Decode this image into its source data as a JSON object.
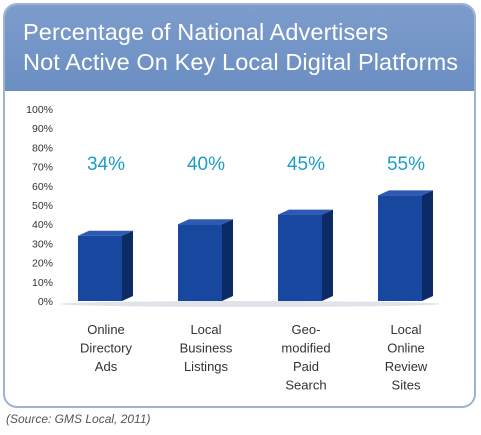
{
  "title_lines": [
    "Percentage of National Advertisers",
    "Not Active On Key Local Digital Platforms"
  ],
  "source": "(Source: GMS Local, 2011)",
  "colors": {
    "header": "#6b8ec2",
    "bar_front": "#17479e",
    "bar_side": "#0b2a66",
    "bar_top": "#2f5ab4",
    "value_label": "#1b9dc8"
  },
  "chart_data": {
    "type": "bar",
    "title": "Percentage of National Advertisers Not Active On Key Local Digital Platforms",
    "categories": [
      [
        "Online",
        "Directory",
        "Ads"
      ],
      [
        "Local",
        "Business",
        "Listings"
      ],
      [
        "Geo-",
        "modified",
        "Paid",
        "Search"
      ],
      [
        "Local",
        "Online",
        "Review",
        "Sites"
      ]
    ],
    "values": [
      34,
      40,
      45,
      55
    ],
    "data_labels": [
      "34%",
      "40%",
      "45%",
      "55%"
    ],
    "yticks": [
      "0%",
      "10%",
      "20%",
      "30%",
      "40%",
      "50%",
      "60%",
      "70%",
      "80%",
      "90%",
      "100%"
    ],
    "ylim": [
      0,
      100
    ],
    "grid": false,
    "legend": "none",
    "bar_style": "3d"
  }
}
